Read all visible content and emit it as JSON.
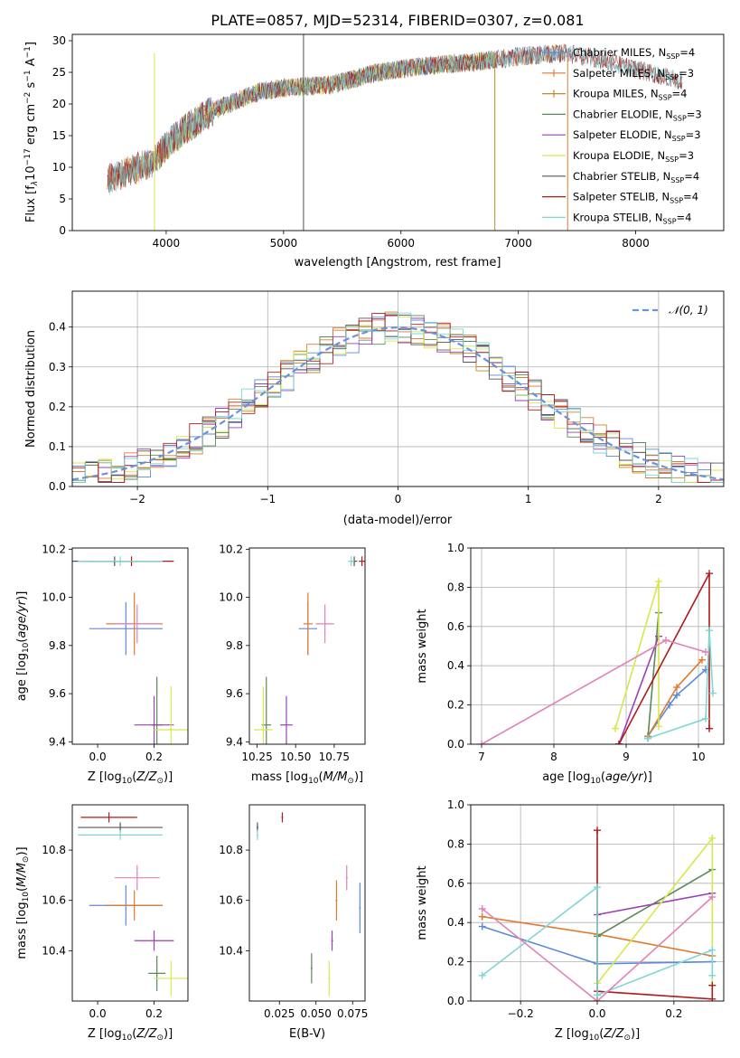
{
  "title": "PLATE=0857, MJD=52314, FIBERID=0307, z=0.081",
  "colors": {
    "Chabrier MILES": "#5b8ad6",
    "Salpeter MILES": "#e07a2e",
    "Kroupa MILES": "#c4882a",
    "Chabrier ELODIE": "#5a8a5a",
    "Salpeter ELODIE": "#9b3fb5",
    "Kroupa ELODIE": "#d6e84a",
    "Chabrier STELIB": "#555555",
    "Salpeter STELIB": "#b01c1c",
    "Kroupa STELIB": "#7fd6d6",
    "Pink": "#e083b8",
    "Normal": "#6b93db"
  },
  "chart_data": [
    {
      "id": "spectrum",
      "type": "line",
      "xlabel": "wavelength [Angstrom, rest frame]",
      "ylabel_main": "Flux [f",
      "ylabel_sub1": "λ",
      "ylabel_mid": "10",
      "ylabel_sup1": "−17",
      "ylabel_rest": " erg cm",
      "ylabel_sup2": "−2",
      "ylabel_s": " s",
      "ylabel_sup3": "−1",
      "ylabel_A": " A",
      "ylabel_sup4": "−1",
      "ylabel_end": "]",
      "xlim": [
        3200,
        8750
      ],
      "ylim": [
        0,
        31
      ],
      "xticks": [
        4000,
        5000,
        6000,
        7000,
        8000
      ],
      "yticks": [
        0,
        5,
        10,
        15,
        20,
        25,
        30
      ],
      "continuum": [
        [
          3500,
          8
        ],
        [
          3700,
          9.5
        ],
        [
          3900,
          11
        ],
        [
          4000,
          13.5
        ],
        [
          4200,
          16.5
        ],
        [
          4400,
          19
        ],
        [
          4600,
          20.5
        ],
        [
          4800,
          22
        ],
        [
          5000,
          22.5
        ],
        [
          5200,
          22.8
        ],
        [
          5400,
          23
        ],
        [
          5600,
          24
        ],
        [
          5800,
          25
        ],
        [
          6000,
          25.5
        ],
        [
          6200,
          26
        ],
        [
          6400,
          26.3
        ],
        [
          6600,
          26.6
        ],
        [
          6800,
          27
        ],
        [
          7000,
          27.5
        ],
        [
          7200,
          27.8
        ],
        [
          7400,
          28
        ],
        [
          7600,
          27.5
        ],
        [
          7800,
          26.5
        ],
        [
          8000,
          25.5
        ],
        [
          8200,
          24.5
        ],
        [
          8400,
          23.5
        ]
      ],
      "legend": [
        {
          "name": "Chabrier MILES",
          "n": "4"
        },
        {
          "name": "Salpeter MILES",
          "n": "3"
        },
        {
          "name": "Kroupa MILES",
          "n": "4"
        },
        {
          "name": "Chabrier ELODIE",
          "n": "3"
        },
        {
          "name": "Salpeter ELODIE",
          "n": "3"
        },
        {
          "name": "Kroupa ELODIE",
          "n": "3"
        },
        {
          "name": "Chabrier STELIB",
          "n": "4"
        },
        {
          "name": "Salpeter STELIB",
          "n": "4"
        },
        {
          "name": "Kroupa STELIB",
          "n": "4"
        }
      ],
      "legend_label_ssp": "SSP",
      "series": [
        {
          "name": "Chabrier MILES",
          "range": [
            3500,
            7450
          ]
        },
        {
          "name": "Salpeter MILES",
          "range": [
            3500,
            7420
          ]
        },
        {
          "name": "Kroupa MILES",
          "range": [
            3500,
            6800
          ]
        },
        {
          "name": "Chabrier ELODIE",
          "range": [
            3900,
            6800
          ]
        },
        {
          "name": "Salpeter ELODIE",
          "range": [
            3900,
            6800
          ]
        },
        {
          "name": "Kroupa ELODIE",
          "range": [
            3900,
            6800
          ]
        },
        {
          "name": "Chabrier STELIB",
          "range": [
            3500,
            8400
          ]
        },
        {
          "name": "Salpeter STELIB",
          "range": [
            3500,
            8400
          ]
        },
        {
          "name": "Kroupa STELIB",
          "range": [
            3500,
            8400
          ]
        }
      ]
    },
    {
      "id": "residuals",
      "type": "histogram",
      "xlabel": "(data-model)/error",
      "ylabel": "Normed distribution",
      "xlim": [
        -2.5,
        2.5
      ],
      "ylim": [
        0,
        0.49
      ],
      "xticks": [
        -2,
        -1,
        0,
        1,
        2
      ],
      "yticks": [
        0.0,
        0.1,
        0.2,
        0.3,
        0.4
      ],
      "grid": true,
      "legend": "𝒩(0, 1)",
      "normal_curve": {
        "mean": 0,
        "sigma": 1
      }
    },
    {
      "id": "age_vs_Z",
      "type": "errorbar",
      "xlabel": "Z [log10(Z/Z⊙)]",
      "ylabel": "age  [log10(age/yr)]",
      "xlim": [
        -0.09,
        0.32
      ],
      "ylim": [
        9.39,
        10.205
      ],
      "xticks": [
        0.0,
        0.2
      ],
      "yticks": [
        9.4,
        9.6,
        9.8,
        10.0,
        10.2
      ],
      "points": [
        {
          "series": "Chabrier MILES",
          "x": 0.1,
          "y": 9.87,
          "xerr": 0.13,
          "yerr": 0.11
        },
        {
          "series": "Salpeter MILES",
          "x": 0.13,
          "y": 9.89,
          "xerr": 0.1,
          "yerr": 0.13
        },
        {
          "series": "Chabrier ELODIE",
          "x": 0.21,
          "y": 9.47,
          "xerr": 0.02,
          "yerr": 0.2
        },
        {
          "series": "Salpeter ELODIE",
          "x": 0.2,
          "y": 9.47,
          "xerr": 0.07,
          "yerr": 0.12
        },
        {
          "series": "Kroupa ELODIE",
          "x": 0.26,
          "y": 9.45,
          "xerr": 0.06,
          "yerr": 0.18
        },
        {
          "series": "Chabrier STELIB",
          "x": 0.06,
          "y": 10.15,
          "xerr": 0.16,
          "yerr": 0.02
        },
        {
          "series": "Salpeter STELIB",
          "x": 0.12,
          "y": 10.15,
          "xerr": 0.15,
          "yerr": 0.02
        },
        {
          "series": "Kroupa STELIB",
          "x": 0.08,
          "y": 10.15,
          "xerr": 0.15,
          "yerr": 0.02
        },
        {
          "series": "Pink",
          "x": 0.14,
          "y": 9.89,
          "xerr": 0.08,
          "yerr": 0.08
        }
      ]
    },
    {
      "id": "age_vs_mass",
      "type": "errorbar",
      "xlabel": "mass [log10(M/M⊙)]",
      "xlim": [
        10.2,
        10.95
      ],
      "ylim": [
        9.39,
        10.205
      ],
      "xticks": [
        10.25,
        10.5,
        10.75
      ],
      "yticks": [
        9.4,
        9.6,
        9.8,
        10.0,
        10.2
      ],
      "points": [
        {
          "series": "Chabrier MILES",
          "x": 10.58,
          "y": 9.87,
          "xerr": 0.06,
          "yerr": 0.11
        },
        {
          "series": "Salpeter MILES",
          "x": 10.58,
          "y": 9.89,
          "xerr": 0.03,
          "yerr": 0.13
        },
        {
          "series": "Chabrier ELODIE",
          "x": 10.31,
          "y": 9.47,
          "xerr": 0.03,
          "yerr": 0.2
        },
        {
          "series": "Salpeter ELODIE",
          "x": 10.44,
          "y": 9.47,
          "xerr": 0.04,
          "yerr": 0.12
        },
        {
          "series": "Kroupa ELODIE",
          "x": 10.29,
          "y": 9.45,
          "xerr": 0.06,
          "yerr": 0.18
        },
        {
          "series": "Chabrier STELIB",
          "x": 10.88,
          "y": 10.15,
          "xerr": 0.02,
          "yerr": 0.02
        },
        {
          "series": "Salpeter STELIB",
          "x": 10.93,
          "y": 10.15,
          "xerr": 0.02,
          "yerr": 0.02
        },
        {
          "series": "Kroupa STELIB",
          "x": 10.86,
          "y": 10.15,
          "xerr": 0.02,
          "yerr": 0.02
        },
        {
          "series": "Pink",
          "x": 10.69,
          "y": 9.89,
          "xerr": 0.06,
          "yerr": 0.08
        }
      ]
    },
    {
      "id": "weight_vs_age",
      "type": "line",
      "xlabel": "age  [log10(age/yr)]",
      "ylabel": "mass weight",
      "xlim": [
        6.85,
        10.35
      ],
      "ylim": [
        0,
        1
      ],
      "xticks": [
        7,
        8,
        9,
        10
      ],
      "yticks": [
        0.0,
        0.2,
        0.4,
        0.6,
        0.8,
        1.0
      ],
      "grid": true,
      "series": [
        {
          "series": "Chabrier MILES",
          "x": [
            9.3,
            9.6,
            9.7,
            10.1
          ],
          "y": [
            0.04,
            0.2,
            0.25,
            0.38
          ]
        },
        {
          "series": "Salpeter MILES",
          "x": [
            9.3,
            9.7,
            10.05
          ],
          "y": [
            0.04,
            0.29,
            0.43
          ]
        },
        {
          "series": "Chabrier ELODIE",
          "x": [
            9.3,
            9.45
          ],
          "y": [
            0.03,
            0.67
          ]
        },
        {
          "series": "Salpeter ELODIE",
          "x": [
            8.9,
            9.45
          ],
          "y": [
            0.0,
            0.55
          ]
        },
        {
          "series": "Kroupa ELODIE",
          "x": [
            8.85,
            9.45,
            9.45
          ],
          "y": [
            0.08,
            0.83,
            0.09
          ]
        },
        {
          "series": "Salpeter STELIB",
          "x": [
            8.9,
            10.15,
            10.15
          ],
          "y": [
            0.0,
            0.87,
            0.08
          ]
        },
        {
          "series": "Kroupa STELIB",
          "x": [
            9.3,
            10.1,
            10.15,
            10.2
          ],
          "y": [
            0.03,
            0.13,
            0.58,
            0.26
          ]
        },
        {
          "series": "Pink",
          "x": [
            7.0,
            9.55,
            10.1
          ],
          "y": [
            0.0,
            0.53,
            0.47
          ]
        }
      ]
    },
    {
      "id": "mass_vs_Z",
      "type": "errorbar",
      "xlabel": "Z [log10(Z/Z⊙)]",
      "ylabel": "mass [log10(M/M⊙)]",
      "xlim": [
        -0.09,
        0.32
      ],
      "ylim": [
        10.2,
        10.98
      ],
      "xticks": [
        0.0,
        0.2
      ],
      "yticks": [
        10.4,
        10.6,
        10.8
      ],
      "points": [
        {
          "series": "Chabrier MILES",
          "x": 0.1,
          "y": 10.58,
          "xerr": 0.13,
          "yerr": 0.08
        },
        {
          "series": "Salpeter MILES",
          "x": 0.13,
          "y": 10.58,
          "xerr": 0.1,
          "yerr": 0.06
        },
        {
          "series": "Chabrier ELODIE",
          "x": 0.21,
          "y": 10.31,
          "xerr": 0.03,
          "yerr": 0.07
        },
        {
          "series": "Salpeter ELODIE",
          "x": 0.2,
          "y": 10.44,
          "xerr": 0.07,
          "yerr": 0.04
        },
        {
          "series": "Kroupa ELODIE",
          "x": 0.26,
          "y": 10.29,
          "xerr": 0.06,
          "yerr": 0.07
        },
        {
          "series": "Chabrier STELIB",
          "x": 0.08,
          "y": 10.89,
          "xerr": 0.15,
          "yerr": 0.02
        },
        {
          "series": "Salpeter STELIB",
          "x": 0.04,
          "y": 10.93,
          "xerr": 0.1,
          "yerr": 0.02
        },
        {
          "series": "Kroupa STELIB",
          "x": 0.08,
          "y": 10.86,
          "xerr": 0.15,
          "yerr": 0.02
        },
        {
          "series": "Pink",
          "x": 0.14,
          "y": 10.69,
          "xerr": 0.08,
          "yerr": 0.05
        }
      ]
    },
    {
      "id": "mass_vs_EBV",
      "type": "errorbar",
      "xlabel": "E(B-V)",
      "xlim": [
        0.0045,
        0.0835
      ],
      "ylim": [
        10.2,
        10.98
      ],
      "xticks": [
        0.025,
        0.05,
        0.075
      ],
      "yticks": [
        10.4,
        10.6,
        10.8
      ],
      "points": [
        {
          "series": "Chabrier MILES",
          "x": 0.08,
          "y": 10.57,
          "yerr": 0.1
        },
        {
          "series": "Salpeter MILES",
          "x": 0.064,
          "y": 10.6,
          "yerr": 0.08
        },
        {
          "series": "Chabrier ELODIE",
          "x": 0.047,
          "y": 10.33,
          "yerr": 0.06
        },
        {
          "series": "Salpeter ELODIE",
          "x": 0.061,
          "y": 10.44,
          "yerr": 0.04
        },
        {
          "series": "Kroupa ELODIE",
          "x": 0.059,
          "y": 10.29,
          "yerr": 0.07
        },
        {
          "series": "Chabrier STELIB",
          "x": 0.01,
          "y": 10.89,
          "yerr": 0.02
        },
        {
          "series": "Salpeter STELIB",
          "x": 0.027,
          "y": 10.93,
          "yerr": 0.02
        },
        {
          "series": "Kroupa STELIB",
          "x": 0.01,
          "y": 10.86,
          "yerr": 0.02
        },
        {
          "series": "Pink",
          "x": 0.071,
          "y": 10.69,
          "yerr": 0.05
        }
      ]
    },
    {
      "id": "weight_vs_Z",
      "type": "line",
      "xlabel": "Z [log10(Z/Z⊙)]",
      "ylabel": "mass weight",
      "xlim": [
        -0.33,
        0.33
      ],
      "ylim": [
        0,
        1
      ],
      "xticks": [
        -0.2,
        0.0,
        0.2
      ],
      "yticks": [
        0.0,
        0.2,
        0.4,
        0.6,
        0.8,
        1.0
      ],
      "grid": true,
      "series": [
        {
          "series": "Chabrier MILES",
          "x": [
            -0.3,
            0.0,
            0.3
          ],
          "y": [
            0.38,
            0.19,
            0.2
          ]
        },
        {
          "series": "Salpeter MILES",
          "x": [
            -0.3,
            0.0,
            0.3
          ],
          "y": [
            0.43,
            0.34,
            0.23
          ]
        },
        {
          "series": "Chabrier ELODIE",
          "x": [
            0.0,
            0.0,
            0.3
          ],
          "y": [
            0.0,
            0.33,
            0.67
          ]
        },
        {
          "series": "Salpeter ELODIE",
          "x": [
            0.0,
            0.3
          ],
          "y": [
            0.44,
            0.55
          ]
        },
        {
          "series": "Kroupa ELODIE",
          "x": [
            0.0,
            0.0,
            0.3,
            0.3
          ],
          "y": [
            0.0,
            0.09,
            0.83,
            0.08
          ]
        },
        {
          "series": "Salpeter STELIB",
          "x": [
            0.0,
            0.0,
            0.3,
            0.3
          ],
          "y": [
            0.87,
            0.05,
            0.01,
            0.08
          ]
        },
        {
          "series": "Kroupa STELIB",
          "x": [
            -0.3,
            0.0,
            0.0,
            0.3,
            0.3
          ],
          "y": [
            0.13,
            0.58,
            0.03,
            0.26,
            0.13
          ]
        },
        {
          "series": "Pink",
          "x": [
            -0.3,
            0.0,
            0.3
          ],
          "y": [
            0.47,
            0.0,
            0.53
          ]
        }
      ]
    }
  ]
}
